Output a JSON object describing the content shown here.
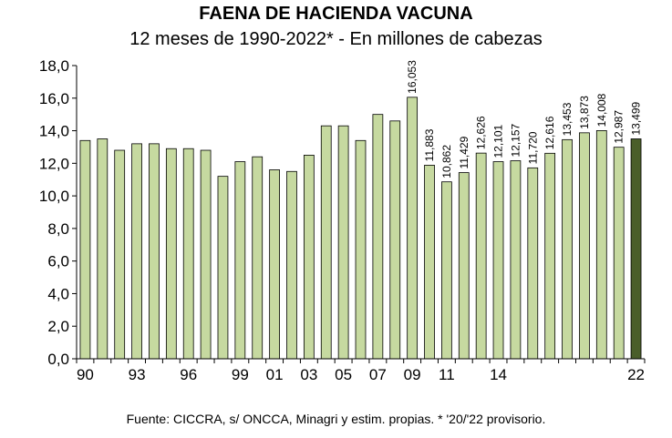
{
  "chart_data": {
    "type": "bar",
    "title": "FAENA DE HACIENDA VACUNA",
    "subtitle": "12 meses de 1990-2022* - En millones de cabezas",
    "source": "Fuente: CICCRA, s/ ONCCA, Minagri y estim. propias. * '20/'22 provisorio.",
    "categories": [
      "1990",
      "1991",
      "1992",
      "1993",
      "1994",
      "1995",
      "1996",
      "1997",
      "1998",
      "1999",
      "2000",
      "2001",
      "2002",
      "2003",
      "2004",
      "2005",
      "2006",
      "2007",
      "2008",
      "2009",
      "2010",
      "2011",
      "2012",
      "2013",
      "2014",
      "2015",
      "2016",
      "2017",
      "2018",
      "2019",
      "2020",
      "2021",
      "2022"
    ],
    "values": [
      13.4,
      13.5,
      12.8,
      13.2,
      13.2,
      12.9,
      12.9,
      12.8,
      11.2,
      12.1,
      12.4,
      11.6,
      11.5,
      12.5,
      14.3,
      14.3,
      13.4,
      15.0,
      14.6,
      16.053,
      11.883,
      10.862,
      11.429,
      12.626,
      12.101,
      12.157,
      11.72,
      12.616,
      13.453,
      13.873,
      14.008,
      12.987,
      13.499
    ],
    "data_labels": [
      "",
      "",
      "",
      "",
      "",
      "",
      "",
      "",
      "",
      "",
      "",
      "",
      "",
      "",
      "",
      "",
      "",
      "",
      "",
      "16,053",
      "11,883",
      "10,862",
      "11,429",
      "12,626",
      "12,101",
      "12,157",
      "11,720",
      "12,616",
      "13,453",
      "13,873",
      "14,008",
      "12,987",
      "13,499"
    ],
    "x_tick_labels": [
      "90",
      "",
      "",
      "93",
      "",
      "",
      "96",
      "",
      "",
      "99",
      "",
      "01",
      "",
      "03",
      "",
      "05",
      "",
      "07",
      "",
      "09",
      "",
      "11",
      "",
      "",
      "14",
      "",
      "",
      "",
      "",
      "",
      "",
      "",
      "22"
    ],
    "y_tick_labels": [
      "0,0",
      "2,0",
      "4,0",
      "6,0",
      "8,0",
      "10,0",
      "12,0",
      "14,0",
      "16,0",
      "18,0"
    ],
    "ylim": [
      0,
      18
    ],
    "grid": false,
    "colors": {
      "bar": "#c6d9a0",
      "highlight": "#4a5e2a",
      "border": "#000000"
    },
    "highlight_index": 32
  }
}
